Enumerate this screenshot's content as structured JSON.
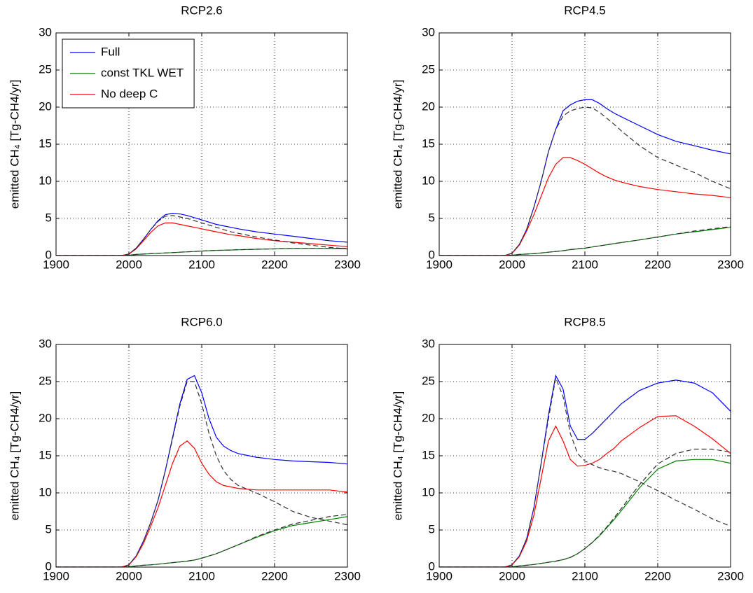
{
  "chart_data": [
    {
      "type": "line",
      "title": "RCP2.6",
      "ylabel": "emitted CH₄ [Tg-CH4/yr]",
      "x": [
        1900,
        1950,
        1990,
        2000,
        2010,
        2020,
        2030,
        2040,
        2050,
        2060,
        2070,
        2080,
        2090,
        2100,
        2110,
        2120,
        2130,
        2140,
        2150,
        2175,
        2200,
        2225,
        2250,
        2275,
        2300
      ],
      "xlim": [
        1900,
        2300
      ],
      "xticks": [
        1900,
        2000,
        2100,
        2200,
        2300
      ],
      "ylim": [
        0,
        30
      ],
      "yticks": [
        0,
        5,
        10,
        15,
        20,
        25,
        30
      ],
      "grid": true,
      "legend": "upper left",
      "series": [
        {
          "name": "Full",
          "color": "#0000ff",
          "values": [
            0,
            0,
            0,
            0.2,
            1.0,
            2.2,
            3.5,
            4.7,
            5.5,
            5.7,
            5.6,
            5.4,
            5.1,
            4.8,
            4.5,
            4.2,
            4.0,
            3.8,
            3.6,
            3.2,
            2.9,
            2.6,
            2.3,
            2.0,
            1.8
          ]
        },
        {
          "name": "const TKL WET",
          "color": "#008000",
          "values": [
            0,
            0,
            0,
            0.05,
            0.15,
            0.2,
            0.25,
            0.3,
            0.35,
            0.4,
            0.45,
            0.5,
            0.55,
            0.6,
            0.65,
            0.7,
            0.72,
            0.75,
            0.78,
            0.85,
            0.9,
            0.95,
            0.95,
            0.95,
            0.9
          ]
        },
        {
          "name": "No deep C",
          "color": "#ff0000",
          "values": [
            0,
            0,
            0,
            0.2,
            0.9,
            2.0,
            3.1,
            4.0,
            4.4,
            4.4,
            4.2,
            4.0,
            3.8,
            3.6,
            3.4,
            3.2,
            3.0,
            2.8,
            2.7,
            2.3,
            2.0,
            1.8,
            1.6,
            1.4,
            1.2
          ]
        },
        {
          "color": "#333333",
          "dashed": true,
          "values": [
            0,
            0,
            0,
            0.2,
            1.0,
            2.2,
            3.5,
            4.6,
            5.3,
            5.4,
            5.2,
            5.0,
            4.7,
            4.4,
            4.1,
            3.8,
            3.5,
            3.2,
            3.0,
            2.5,
            2.1,
            1.7,
            1.4,
            1.1,
            0.9
          ]
        },
        {
          "color": "#333333",
          "dashed": true,
          "values": [
            0,
            0,
            0,
            0.05,
            0.15,
            0.2,
            0.25,
            0.3,
            0.35,
            0.4,
            0.45,
            0.5,
            0.55,
            0.6,
            0.65,
            0.7,
            0.72,
            0.75,
            0.78,
            0.85,
            0.9,
            0.95,
            0.95,
            0.95,
            0.95
          ]
        }
      ]
    },
    {
      "type": "line",
      "title": "RCP4.5",
      "ylabel": "emitted CH₄ [Tg-CH4/yr]",
      "x": [
        1900,
        1950,
        1990,
        2000,
        2010,
        2020,
        2030,
        2040,
        2050,
        2060,
        2070,
        2080,
        2090,
        2100,
        2110,
        2120,
        2130,
        2140,
        2150,
        2175,
        2200,
        2225,
        2250,
        2275,
        2300
      ],
      "xlim": [
        1900,
        2300
      ],
      "xticks": [
        1900,
        2000,
        2100,
        2200,
        2300
      ],
      "ylim": [
        0,
        30
      ],
      "yticks": [
        0,
        5,
        10,
        15,
        20,
        25,
        30
      ],
      "grid": true,
      "series": [
        {
          "color": "#0000ff",
          "values": [
            0,
            0,
            0,
            0.3,
            1.5,
            3.5,
            6.5,
            10,
            14,
            17,
            19.5,
            20.3,
            20.8,
            21.0,
            21.0,
            20.5,
            19.8,
            19.2,
            18.7,
            17.5,
            16.3,
            15.4,
            14.8,
            14.2,
            13.7
          ]
        },
        {
          "color": "#008000",
          "values": [
            0,
            0,
            0,
            0.05,
            0.15,
            0.2,
            0.25,
            0.35,
            0.45,
            0.55,
            0.65,
            0.8,
            0.9,
            1.0,
            1.15,
            1.3,
            1.45,
            1.6,
            1.75,
            2.1,
            2.5,
            2.9,
            3.2,
            3.5,
            3.8
          ]
        },
        {
          "color": "#ff0000",
          "values": [
            0,
            0,
            0,
            0.3,
            1.4,
            3.3,
            5.5,
            8,
            10.5,
            12.3,
            13.2,
            13.2,
            12.8,
            12.3,
            11.7,
            11.1,
            10.6,
            10.2,
            9.9,
            9.3,
            8.9,
            8.6,
            8.3,
            8.1,
            7.8
          ]
        },
        {
          "color": "#333333",
          "dashed": true,
          "values": [
            0,
            0,
            0,
            0.3,
            1.5,
            3.5,
            6.5,
            10,
            14,
            17,
            18.8,
            19.5,
            19.8,
            20.0,
            19.9,
            19.3,
            18.5,
            17.7,
            16.8,
            14.8,
            13.2,
            12.2,
            11.2,
            10.0,
            9.0
          ]
        },
        {
          "color": "#333333",
          "dashed": true,
          "values": [
            0,
            0,
            0,
            0.05,
            0.15,
            0.2,
            0.25,
            0.35,
            0.45,
            0.55,
            0.65,
            0.8,
            0.9,
            1.0,
            1.15,
            1.3,
            1.45,
            1.6,
            1.75,
            2.1,
            2.5,
            2.9,
            3.3,
            3.6,
            3.9
          ]
        }
      ]
    },
    {
      "type": "line",
      "title": "RCP6.0",
      "ylabel": "emitted CH₄ [Tg-CH4/yr]",
      "x": [
        1900,
        1950,
        1990,
        2000,
        2010,
        2020,
        2030,
        2040,
        2050,
        2060,
        2070,
        2080,
        2090,
        2100,
        2110,
        2120,
        2130,
        2140,
        2150,
        2175,
        2200,
        2225,
        2250,
        2275,
        2300
      ],
      "xlim": [
        1900,
        2300
      ],
      "xticks": [
        1900,
        2000,
        2100,
        2200,
        2300
      ],
      "ylim": [
        0,
        30
      ],
      "yticks": [
        0,
        5,
        10,
        15,
        20,
        25,
        30
      ],
      "grid": true,
      "series": [
        {
          "color": "#0000ff",
          "values": [
            0,
            0,
            0,
            0.3,
            1.5,
            3.5,
            6,
            9,
            13,
            17.5,
            22,
            25.3,
            25.8,
            23.5,
            20,
            17.5,
            16.3,
            15.7,
            15.3,
            14.8,
            14.5,
            14.3,
            14.2,
            14.1,
            13.9
          ]
        },
        {
          "color": "#008000",
          "values": [
            0,
            0,
            0,
            0.05,
            0.15,
            0.25,
            0.3,
            0.4,
            0.5,
            0.6,
            0.7,
            0.8,
            0.95,
            1.2,
            1.5,
            1.8,
            2.2,
            2.6,
            3.0,
            4.0,
            4.9,
            5.6,
            6.0,
            6.4,
            6.8
          ]
        },
        {
          "color": "#ff0000",
          "values": [
            0,
            0,
            0,
            0.3,
            1.4,
            3.2,
            5.5,
            8,
            11,
            14,
            16.3,
            17.0,
            16,
            14,
            12.5,
            11.5,
            11,
            10.8,
            10.6,
            10.4,
            10.4,
            10.4,
            10.4,
            10.4,
            10.1
          ]
        },
        {
          "color": "#333333",
          "dashed": true,
          "values": [
            0,
            0,
            0,
            0.3,
            1.5,
            3.5,
            6,
            9,
            13,
            17.3,
            21.7,
            25,
            25,
            22,
            18,
            15,
            13,
            11.8,
            11,
            10,
            8.8,
            7.5,
            6.7,
            6.2,
            5.7
          ]
        },
        {
          "color": "#333333",
          "dashed": true,
          "values": [
            0,
            0,
            0,
            0.05,
            0.15,
            0.25,
            0.3,
            0.4,
            0.5,
            0.6,
            0.7,
            0.8,
            0.95,
            1.2,
            1.5,
            1.8,
            2.2,
            2.6,
            3.0,
            4.1,
            5.0,
            5.8,
            6.3,
            6.8,
            7.1
          ]
        }
      ]
    },
    {
      "type": "line",
      "title": "RCP8.5",
      "ylabel": "emitted CH₄ [Tg-CH4/yr]",
      "x": [
        1900,
        1950,
        1990,
        2000,
        2010,
        2020,
        2030,
        2040,
        2050,
        2060,
        2070,
        2080,
        2090,
        2100,
        2110,
        2120,
        2130,
        2140,
        2150,
        2175,
        2200,
        2225,
        2250,
        2275,
        2300
      ],
      "xlim": [
        1900,
        2300
      ],
      "xticks": [
        1900,
        2000,
        2100,
        2200,
        2300
      ],
      "ylim": [
        0,
        30
      ],
      "yticks": [
        0,
        5,
        10,
        15,
        20,
        25,
        30
      ],
      "grid": true,
      "series": [
        {
          "color": "#0000ff",
          "values": [
            0,
            0,
            0,
            0.3,
            1.5,
            3.8,
            8,
            14,
            20.5,
            25.8,
            24,
            19,
            17.2,
            17.2,
            18,
            19,
            20,
            21,
            22,
            23.8,
            24.8,
            25.2,
            24.8,
            23.5,
            21
          ]
        },
        {
          "color": "#008000",
          "values": [
            0,
            0,
            0,
            0.05,
            0.15,
            0.25,
            0.35,
            0.5,
            0.65,
            0.8,
            1.0,
            1.3,
            1.8,
            2.5,
            3.3,
            4.2,
            5.3,
            6.4,
            7.6,
            10.7,
            13.2,
            14.3,
            14.5,
            14.5,
            14.0
          ]
        },
        {
          "color": "#ff0000",
          "values": [
            0,
            0,
            0,
            0.3,
            1.4,
            3.5,
            7,
            12,
            17,
            19.0,
            17,
            14.5,
            13.6,
            13.7,
            14,
            14.5,
            15.3,
            16,
            17,
            18.8,
            20.3,
            20.4,
            19,
            17.3,
            15.3
          ]
        },
        {
          "color": "#333333",
          "dashed": true,
          "values": [
            0,
            0,
            0,
            0.3,
            1.5,
            3.8,
            8,
            14,
            20,
            25.5,
            23,
            18,
            15.3,
            14.3,
            13.8,
            13.4,
            13.1,
            12.9,
            12.6,
            11.5,
            10.3,
            9.0,
            7.8,
            6.5,
            5.5
          ]
        },
        {
          "color": "#333333",
          "dashed": true,
          "values": [
            0,
            0,
            0,
            0.05,
            0.15,
            0.25,
            0.35,
            0.5,
            0.65,
            0.8,
            1.0,
            1.3,
            1.8,
            2.5,
            3.3,
            4.3,
            5.4,
            6.6,
            7.9,
            11.1,
            13.9,
            15.3,
            15.9,
            15.9,
            15.5
          ]
        }
      ]
    }
  ]
}
